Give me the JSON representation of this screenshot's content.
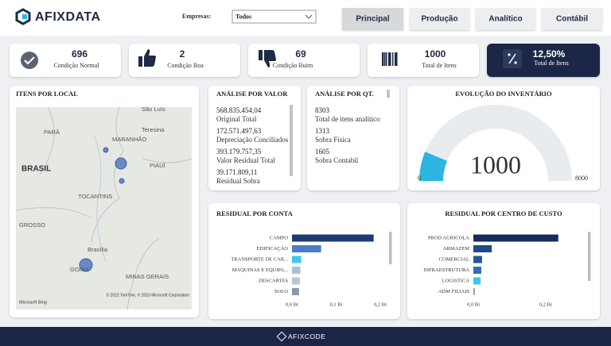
{
  "header": {
    "logo": "AFIXDATA",
    "filter_label": "Empresas:",
    "filter_value": "Todos",
    "tabs": [
      "Principal",
      "Produção",
      "Analítico",
      "Contábil"
    ]
  },
  "kpis": [
    {
      "value": "696",
      "label": "Condição Normal"
    },
    {
      "value": "2",
      "label": "Condição Boa"
    },
    {
      "value": "69",
      "label": "Condição Ruim"
    },
    {
      "value": "1000",
      "label": "Total de Itens"
    },
    {
      "value": "12,50%",
      "label": "Total de Itens"
    }
  ],
  "map": {
    "title": "ITENS POR LOCAL",
    "places": [
      "São Luís",
      "PARÁ",
      "MARANHÃO",
      "Teresina",
      "BRASIL",
      "PIAUÍ",
      "TOCANTINS",
      "GROSSO",
      "Brasília",
      "GOIÁS",
      "MINAS GERAIS"
    ],
    "attribution": "© 2022 TomTom, © 2023 Microsoft Corporation",
    "brand": "Microsoft Bing"
  },
  "analise_valor": {
    "title": "ANÁLISE POR VALOR",
    "items": [
      {
        "value": "568.835.454,04",
        "label": "Original Total"
      },
      {
        "value": "172.571.497,63",
        "label": "Depreciação Conciliados"
      },
      {
        "value": "393.179.757,35",
        "label": "Valor Residual Total"
      },
      {
        "value": "39.171.809,11",
        "label": "Residual Sobra"
      }
    ]
  },
  "analise_qt": {
    "title": "ANÁLISE POR QT.",
    "items": [
      {
        "value": "8303",
        "label": "Total de itens analítico"
      },
      {
        "value": "1313",
        "label": "Sobra Física"
      },
      {
        "value": "1605",
        "label": "Sobra Contabil"
      }
    ]
  },
  "chart_data": [
    {
      "type": "gauge",
      "title": "EVOLUÇÃO DO INVENTÁRIO",
      "value": 1000,
      "ylim": [
        0,
        8000
      ],
      "color": "#2bb5e0"
    },
    {
      "type": "bar",
      "title": "RESIDUAL POR CONTA",
      "categories": [
        "CAMPO",
        "EDIFICAÇÃO",
        "TRANSPORTE DE CAR...",
        "MAQUINAS E EQUIPA...",
        "DESCARTES",
        "SOLO"
      ],
      "values": [
        0.185,
        0.066,
        0.021,
        0.019,
        0.018,
        0.016
      ],
      "colors": [
        "#1f3b73",
        "#4a7ec4",
        "#3fc7e8",
        "#a9c0d8",
        "#bcc6d0",
        "#8a9aa8"
      ],
      "xlim": [
        0,
        0.2
      ],
      "xticks": [
        {
          "value": 0,
          "label": "0,0 Bi"
        },
        {
          "value": 0.1,
          "label": "0,1 Bi"
        },
        {
          "value": 0.2,
          "label": "0,2 Bi"
        }
      ]
    },
    {
      "type": "bar",
      "title": "RESIDUAL POR CENTRO DE CUSTO",
      "categories": [
        "PROD AGRICOLA",
        "ARMAZEM",
        "COMERCIAL",
        "INFRAESTRUTURA",
        "LOGISTICA",
        "ADM FILIAIS"
      ],
      "values": [
        0.235,
        0.051,
        0.024,
        0.022,
        0.02,
        0.004
      ],
      "colors": [
        "#1b2a5c",
        "#1f4a8a",
        "#24559a",
        "#2f6fb0",
        "#3fc7e8",
        "#8a9aa8"
      ],
      "xlim": [
        0,
        0.24
      ],
      "xticks": [
        {
          "value": 0,
          "label": "0,0 Bi"
        },
        {
          "value": 0.2,
          "label": "0,2 Bi"
        }
      ]
    }
  ],
  "footer": {
    "brand": "AFIXCODE"
  }
}
